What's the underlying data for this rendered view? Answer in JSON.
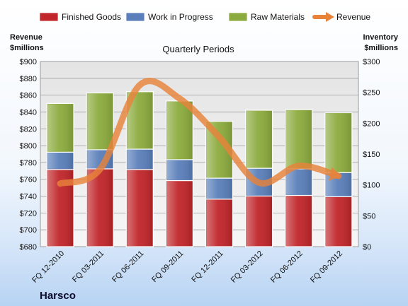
{
  "chart_data": {
    "type": "bar",
    "stacked": true,
    "title": "Quarterly Periods",
    "company": "Harsco",
    "categories": [
      "FQ 12-2010",
      "FQ 03-2011",
      "FQ 06-2011",
      "FQ 09-2011",
      "FQ 12-2011",
      "FQ 03-2012",
      "FQ 06-2012",
      "FQ 09-2012"
    ],
    "left_axis": {
      "label_line1": "Revenue",
      "label_line2": "$millions",
      "ylim": [
        680,
        900
      ],
      "ticks": [
        680,
        700,
        720,
        740,
        760,
        780,
        800,
        820,
        840,
        860,
        880,
        900
      ],
      "tick_labels": [
        "$680",
        "$700",
        "$720",
        "$740",
        "$760",
        "$780",
        "$800",
        "$820",
        "$840",
        "$860",
        "$880",
        "$900"
      ]
    },
    "right_axis": {
      "label_line1": "Inventory",
      "label_line2": "$millions",
      "ylim": [
        0,
        300
      ],
      "ticks": [
        0,
        50,
        100,
        150,
        200,
        250,
        300
      ],
      "tick_labels": [
        "$0",
        "$50",
        "$100",
        "$150",
        "$200",
        "$250",
        "$300"
      ]
    },
    "series": [
      {
        "name": "Finished Goods",
        "axis": "right",
        "kind": "bar",
        "color": "#c0262a",
        "values": [
          125,
          126,
          125,
          107,
          77,
          82,
          83,
          81
        ]
      },
      {
        "name": "Work in Progress",
        "axis": "right",
        "kind": "bar",
        "color": "#5a7fba",
        "values": [
          28,
          31,
          33,
          34,
          34,
          45,
          43,
          39
        ]
      },
      {
        "name": "Raw Materials",
        "axis": "right",
        "kind": "bar",
        "color": "#8cab3e",
        "values": [
          79,
          92,
          93,
          95,
          92,
          94,
          96,
          97
        ]
      },
      {
        "name": "Revenue",
        "axis": "left",
        "kind": "line",
        "color": "#e8833a",
        "values": [
          755,
          772,
          872,
          856,
          810,
          756,
          776,
          764
        ]
      }
    ],
    "grid": true,
    "legend_position": "top"
  }
}
